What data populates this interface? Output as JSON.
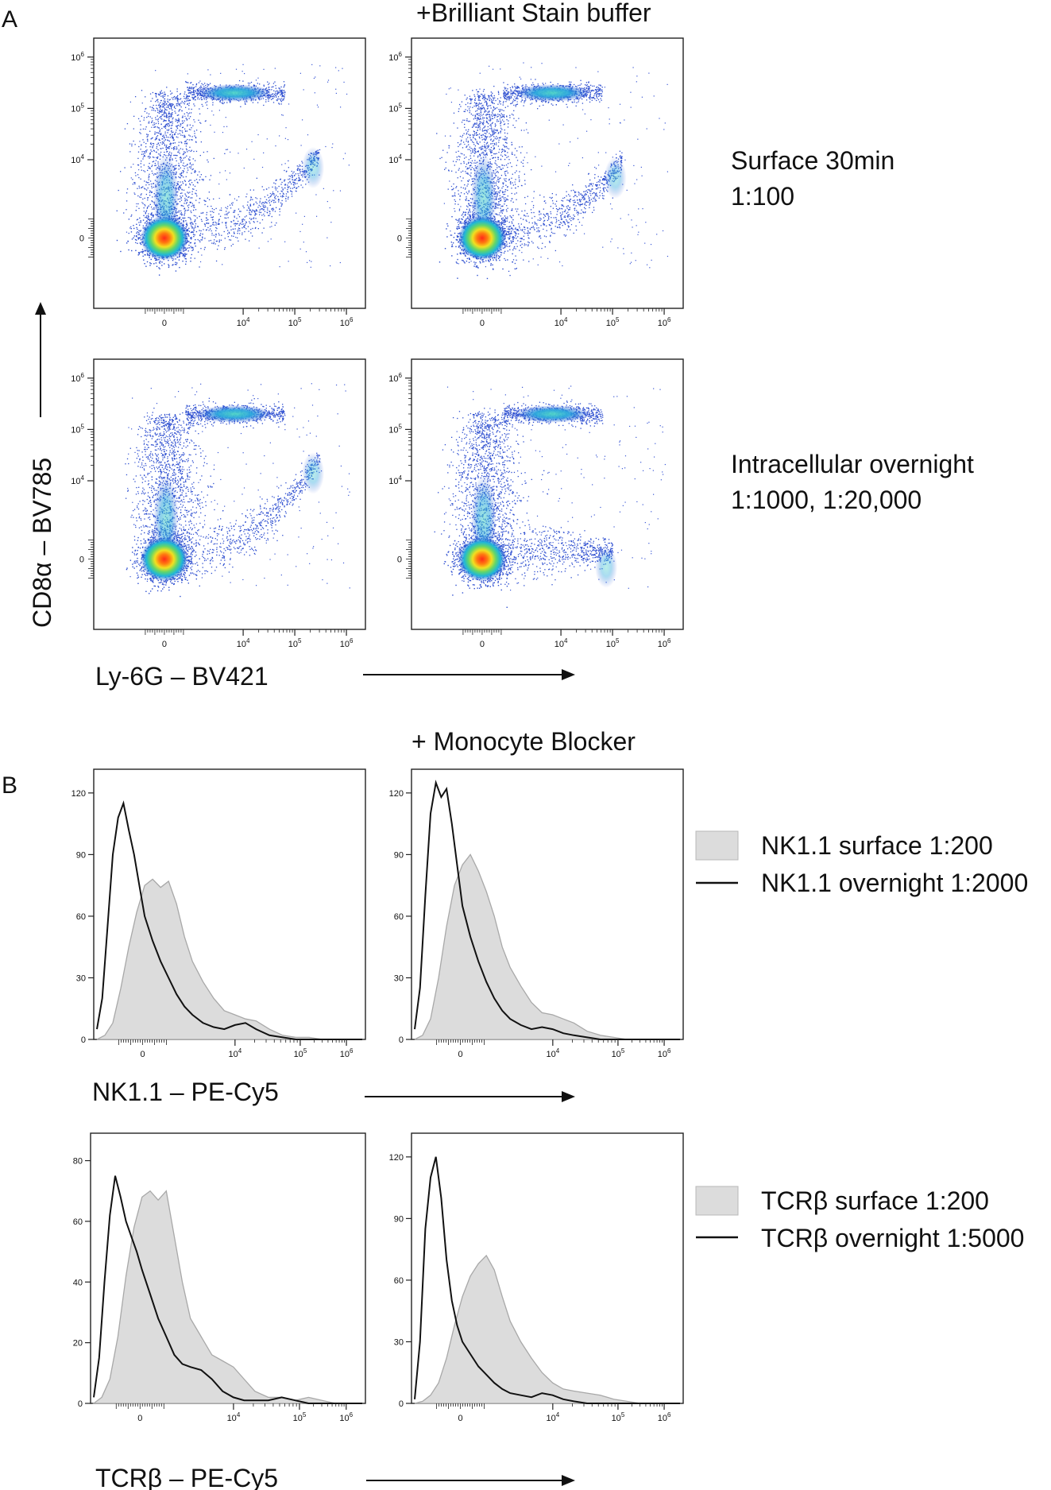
{
  "figure": {
    "panel_a_letter": "A",
    "panel_b_letter": "B",
    "panel_a_header": "+Brilliant Stain buffer",
    "panel_b_header": "+ Monocyte Blocker",
    "row1_label_line1": "Surface 30min",
    "row1_label_line2": "1:100",
    "row2_label_line1": "Intracellular overnight",
    "row2_label_line2": "1:1000, 1:20,000",
    "y_axis_label_a": "CD8α – BV785",
    "x_axis_label_a": "Ly-6G – BV421",
    "x_axis_label_b1": "NK1.1 – PE-Cy5",
    "x_axis_label_b2": "TCRβ – PE-Cy5",
    "legend_b1": [
      "NK1.1 surface 1:200",
      "NK1.1 overnight 1:2000"
    ],
    "legend_b2": [
      "TCRβ surface 1:200",
      "TCRβ overnight 1:5000"
    ]
  },
  "colors": {
    "fill": "#dcdcdc",
    "fill_edge": "#a8a8a8",
    "line": "#111111",
    "axis": "#222222"
  },
  "chart_data": [
    {
      "type": "scatter",
      "title": "Surface 30min 1:100",
      "condition": "standard",
      "xlabel": "Ly-6G – BV421",
      "ylabel": "CD8α – BV785",
      "x_ticks": [
        "0",
        "10^4",
        "10^5",
        "10^6"
      ],
      "y_ticks": [
        "0",
        "10^4",
        "10^5",
        "10^6"
      ],
      "populations": [
        {
          "name": "CD8-negative cluster",
          "x": 0,
          "y": 0
        },
        {
          "name": "CD8+ cluster",
          "x": 3000,
          "y": 200000
        },
        {
          "name": "Ly-6G+ tail",
          "x": 300000,
          "y": 10000
        }
      ]
    },
    {
      "type": "scatter",
      "title": "Surface 30min 1:100",
      "condition": "+Brilliant Stain buffer",
      "xlabel": "Ly-6G – BV421",
      "ylabel": "CD8α – BV785",
      "x_ticks": [
        "0",
        "10^4",
        "10^5",
        "10^6"
      ],
      "y_ticks": [
        "0",
        "10^4",
        "10^5",
        "10^6"
      ],
      "populations": [
        {
          "name": "CD8-negative cluster",
          "x": 0,
          "y": 0
        },
        {
          "name": "CD8+ cluster",
          "x": 3000,
          "y": 200000
        },
        {
          "name": "Ly-6G+ tail",
          "x": 150000,
          "y": 3000
        }
      ]
    },
    {
      "type": "scatter",
      "title": "Intracellular overnight 1:1000, 1:20,000",
      "condition": "standard",
      "xlabel": "Ly-6G – BV421",
      "ylabel": "CD8α – BV785",
      "x_ticks": [
        "0",
        "10^4",
        "10^5",
        "10^6"
      ],
      "y_ticks": [
        "0",
        "10^4",
        "10^5",
        "10^6"
      ],
      "populations": [
        {
          "name": "CD8-negative cluster",
          "x": 0,
          "y": 0
        },
        {
          "name": "CD8+ cluster",
          "x": 3000,
          "y": 200000
        },
        {
          "name": "Ly-6G+ tail",
          "x": 300000,
          "y": 20000
        }
      ]
    },
    {
      "type": "scatter",
      "title": "Intracellular overnight 1:1000, 1:20,000",
      "condition": "+Brilliant Stain buffer",
      "xlabel": "Ly-6G – BV421",
      "ylabel": "CD8α – BV785",
      "x_ticks": [
        "0",
        "10^4",
        "10^5",
        "10^6"
      ],
      "y_ticks": [
        "0",
        "10^4",
        "10^5",
        "10^6"
      ],
      "populations": [
        {
          "name": "CD8-negative cluster",
          "x": 0,
          "y": 0
        },
        {
          "name": "CD8+ cluster",
          "x": 3000,
          "y": 200000
        },
        {
          "name": "Ly-6G+ tail",
          "x": 100000,
          "y": 0
        }
      ]
    },
    {
      "type": "area",
      "title": "NK1.1",
      "condition": "standard",
      "xlabel": "NK1.1 – PE-Cy5",
      "x_ticks": [
        "0",
        "10^4",
        "10^5",
        "10^6"
      ],
      "y_ticks": [
        "0",
        "30",
        "60",
        "90",
        "120"
      ],
      "ylim": [
        0,
        130
      ],
      "series": [
        {
          "name": "NK1.1 surface 1:200",
          "style": "filled",
          "x": [
            0.0,
            0.03,
            0.06,
            0.09,
            0.12,
            0.15,
            0.18,
            0.21,
            0.24,
            0.27,
            0.3,
            0.33,
            0.36,
            0.4,
            0.44,
            0.48,
            0.52,
            0.56,
            0.6,
            0.65,
            0.7,
            0.75,
            0.8,
            0.85,
            0.9,
            0.95,
            1.0
          ],
          "values": [
            0,
            2,
            8,
            25,
            45,
            62,
            75,
            78,
            74,
            77,
            66,
            50,
            38,
            28,
            20,
            14,
            12,
            10,
            9,
            5,
            2,
            1,
            1,
            0,
            0,
            0,
            0
          ]
        },
        {
          "name": "NK1.1 overnight 1:2000",
          "style": "line",
          "x": [
            0.0,
            0.02,
            0.04,
            0.06,
            0.08,
            0.1,
            0.12,
            0.14,
            0.16,
            0.18,
            0.21,
            0.24,
            0.27,
            0.3,
            0.33,
            0.36,
            0.4,
            0.44,
            0.48,
            0.52,
            0.56,
            0.6,
            0.65,
            0.7,
            0.75,
            0.8,
            0.85,
            0.9,
            0.95,
            1.0
          ],
          "values": [
            5,
            20,
            55,
            90,
            108,
            115,
            102,
            90,
            75,
            60,
            48,
            38,
            30,
            22,
            16,
            12,
            8,
            6,
            5,
            7,
            8,
            5,
            2,
            1,
            0,
            0,
            0,
            0,
            0,
            0
          ]
        }
      ]
    },
    {
      "type": "area",
      "title": "NK1.1",
      "condition": "+ Monocyte Blocker",
      "xlabel": "NK1.1 – PE-Cy5",
      "x_ticks": [
        "0",
        "10^4",
        "10^5",
        "10^6"
      ],
      "y_ticks": [
        "0",
        "30",
        "60",
        "90",
        "120"
      ],
      "ylim": [
        0,
        130
      ],
      "series": [
        {
          "name": "NK1.1 surface 1:200",
          "style": "filled",
          "x": [
            0.0,
            0.03,
            0.06,
            0.09,
            0.12,
            0.15,
            0.18,
            0.21,
            0.24,
            0.27,
            0.3,
            0.33,
            0.36,
            0.4,
            0.44,
            0.48,
            0.52,
            0.56,
            0.6,
            0.65,
            0.7,
            0.75,
            0.8,
            0.85,
            0.9,
            0.95,
            1.0
          ],
          "values": [
            0,
            2,
            10,
            30,
            55,
            75,
            85,
            90,
            82,
            72,
            60,
            45,
            35,
            26,
            18,
            13,
            12,
            10,
            8,
            4,
            2,
            1,
            0,
            0,
            0,
            0,
            0
          ]
        },
        {
          "name": "NK1.1 overnight 1:2000",
          "style": "line",
          "x": [
            0.0,
            0.02,
            0.04,
            0.06,
            0.08,
            0.1,
            0.12,
            0.14,
            0.16,
            0.18,
            0.21,
            0.24,
            0.27,
            0.3,
            0.33,
            0.36,
            0.4,
            0.44,
            0.48,
            0.52,
            0.56,
            0.6,
            0.65,
            0.7,
            0.75,
            0.8,
            0.85,
            0.9,
            0.95,
            1.0
          ],
          "values": [
            5,
            25,
            70,
            110,
            125,
            118,
            122,
            105,
            85,
            65,
            50,
            38,
            28,
            20,
            14,
            10,
            7,
            5,
            6,
            5,
            3,
            2,
            1,
            0,
            0,
            0,
            0,
            0,
            0,
            0
          ]
        }
      ]
    },
    {
      "type": "area",
      "title": "TCRβ",
      "condition": "standard",
      "xlabel": "TCRβ – PE-Cy5",
      "x_ticks": [
        "0",
        "10^4",
        "10^5",
        "10^6"
      ],
      "y_ticks": [
        "0",
        "20",
        "40",
        "60",
        "80"
      ],
      "ylim": [
        0,
        88
      ],
      "series": [
        {
          "name": "TCRβ surface 1:200",
          "style": "filled",
          "x": [
            0.0,
            0.03,
            0.06,
            0.09,
            0.12,
            0.15,
            0.18,
            0.21,
            0.24,
            0.27,
            0.3,
            0.33,
            0.36,
            0.4,
            0.44,
            0.48,
            0.52,
            0.56,
            0.6,
            0.65,
            0.7,
            0.75,
            0.8,
            0.85,
            0.9,
            0.95,
            1.0
          ],
          "values": [
            0,
            2,
            8,
            22,
            42,
            58,
            68,
            70,
            67,
            70,
            55,
            40,
            28,
            22,
            16,
            14,
            12,
            8,
            4,
            2,
            2,
            1,
            2,
            1,
            0,
            0,
            0
          ]
        },
        {
          "name": "TCRβ overnight 1:5000",
          "style": "line",
          "x": [
            0.0,
            0.02,
            0.04,
            0.06,
            0.08,
            0.1,
            0.12,
            0.14,
            0.16,
            0.18,
            0.21,
            0.24,
            0.27,
            0.3,
            0.33,
            0.36,
            0.4,
            0.44,
            0.48,
            0.52,
            0.56,
            0.6,
            0.65,
            0.7,
            0.75,
            0.8,
            0.85,
            0.9,
            0.95,
            1.0
          ],
          "values": [
            2,
            15,
            40,
            62,
            75,
            68,
            60,
            55,
            50,
            44,
            36,
            28,
            22,
            16,
            13,
            12,
            11,
            8,
            4,
            2,
            1,
            1,
            1,
            2,
            1,
            0,
            0,
            0,
            0,
            0
          ]
        }
      ]
    },
    {
      "type": "area",
      "title": "TCRβ",
      "condition": "+ Monocyte Blocker",
      "xlabel": "TCRβ – PE-Cy5",
      "x_ticks": [
        "0",
        "10^4",
        "10^5",
        "10^6"
      ],
      "y_ticks": [
        "0",
        "30",
        "60",
        "90",
        "120"
      ],
      "ylim": [
        0,
        130
      ],
      "series": [
        {
          "name": "TCRβ surface 1:200",
          "style": "filled",
          "x": [
            0.0,
            0.03,
            0.06,
            0.09,
            0.12,
            0.15,
            0.18,
            0.21,
            0.24,
            0.27,
            0.3,
            0.33,
            0.36,
            0.4,
            0.44,
            0.48,
            0.52,
            0.56,
            0.6,
            0.65,
            0.7,
            0.75,
            0.8,
            0.85,
            0.9,
            0.95,
            1.0
          ],
          "values": [
            0,
            1,
            4,
            10,
            22,
            38,
            52,
            62,
            68,
            72,
            65,
            52,
            40,
            30,
            22,
            15,
            10,
            7,
            6,
            5,
            4,
            2,
            1,
            0,
            0,
            0,
            0
          ]
        },
        {
          "name": "TCRβ overnight 1:5000",
          "style": "line",
          "x": [
            0.0,
            0.02,
            0.04,
            0.06,
            0.08,
            0.1,
            0.12,
            0.14,
            0.16,
            0.18,
            0.21,
            0.24,
            0.27,
            0.3,
            0.33,
            0.36,
            0.4,
            0.44,
            0.48,
            0.52,
            0.56,
            0.6,
            0.65,
            0.7,
            0.75,
            0.8,
            0.85,
            0.9,
            0.95,
            1.0
          ],
          "values": [
            2,
            30,
            85,
            110,
            120,
            100,
            70,
            50,
            38,
            30,
            24,
            18,
            14,
            10,
            7,
            5,
            4,
            3,
            5,
            4,
            2,
            1,
            0,
            0,
            0,
            0,
            0,
            0,
            0,
            0
          ]
        }
      ]
    }
  ]
}
